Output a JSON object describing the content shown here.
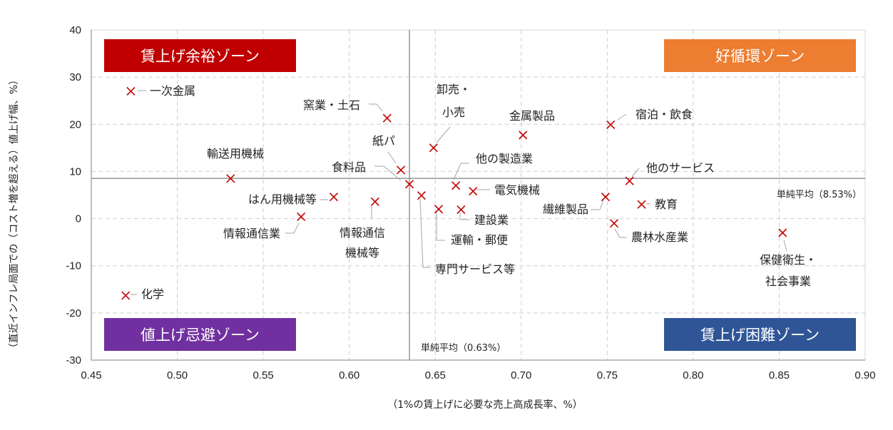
{
  "chart_data": {
    "type": "scatter",
    "xlabel": "（1%の賃上げに必要な売上高成長率、%）",
    "ylabel": "（直近インフレ局面での（コスト増を超える）値上げ幅、%）",
    "xlim": [
      0.45,
      0.9
    ],
    "ylim": [
      -30,
      40
    ],
    "x_ticks": [
      "0.45",
      "0.50",
      "0.55",
      "0.60",
      "0.65",
      "0.70",
      "0.75",
      "0.80",
      "0.85",
      "0.90"
    ],
    "y_ticks": [
      "40",
      "30",
      "20",
      "10",
      "0",
      "-10",
      "-20",
      "-30"
    ],
    "grid": true,
    "marker_color": "#c00000",
    "averages": {
      "x": {
        "value": 0.635,
        "label": "単純平均（0.63%）"
      },
      "y": {
        "value": 8.53,
        "label": "単純平均（8.53%）"
      }
    },
    "zones": [
      {
        "name": "賃上げ余裕ゾーン",
        "color": "#c00000",
        "position": "top-left"
      },
      {
        "name": "好循環ゾーン",
        "color": "#ed7d31",
        "position": "top-right"
      },
      {
        "name": "値上げ忌避ゾーン",
        "color": "#7030a0",
        "position": "bottom-left"
      },
      {
        "name": "賃上げ困難ゾーン",
        "color": "#2f5597",
        "position": "bottom-right"
      }
    ],
    "points": [
      {
        "name": "一次金属",
        "x": 0.473,
        "y": 27.0
      },
      {
        "name": "窯業・土石",
        "x": 0.622,
        "y": 21.3
      },
      {
        "name": "卸売・小売",
        "x": 0.649,
        "y": 15.0
      },
      {
        "name": "金属製品",
        "x": 0.701,
        "y": 17.7
      },
      {
        "name": "宿泊・飲食",
        "x": 0.752,
        "y": 19.9
      },
      {
        "name": "紙パ",
        "x": 0.63,
        "y": 10.3
      },
      {
        "name": "輸送用機械",
        "x": 0.531,
        "y": 8.5
      },
      {
        "name": "食料品",
        "x": 0.635,
        "y": 7.3
      },
      {
        "name": "他の製造業",
        "x": 0.662,
        "y": 7.0
      },
      {
        "name": "他のサービス",
        "x": 0.763,
        "y": 8.0
      },
      {
        "name": "はん用機械等",
        "x": 0.591,
        "y": 4.6
      },
      {
        "name": "電気機械",
        "x": 0.672,
        "y": 5.8
      },
      {
        "name": "繊維製品",
        "x": 0.749,
        "y": 4.6
      },
      {
        "name": "教育",
        "x": 0.77,
        "y": 3.0
      },
      {
        "name": "情報通信機械等",
        "x": 0.615,
        "y": 3.6
      },
      {
        "name": "専門サービス等",
        "x": 0.642,
        "y": 4.9
      },
      {
        "name": "運輸・郵便",
        "x": 0.652,
        "y": 2.0
      },
      {
        "name": "建設業",
        "x": 0.665,
        "y": 1.9
      },
      {
        "name": "情報通信業",
        "x": 0.572,
        "y": 0.4
      },
      {
        "name": "農林水産業",
        "x": 0.754,
        "y": -1.0
      },
      {
        "name": "保健衛生・社会事業",
        "x": 0.852,
        "y": -3.0
      },
      {
        "name": "化学",
        "x": 0.47,
        "y": -16.3
      }
    ]
  }
}
